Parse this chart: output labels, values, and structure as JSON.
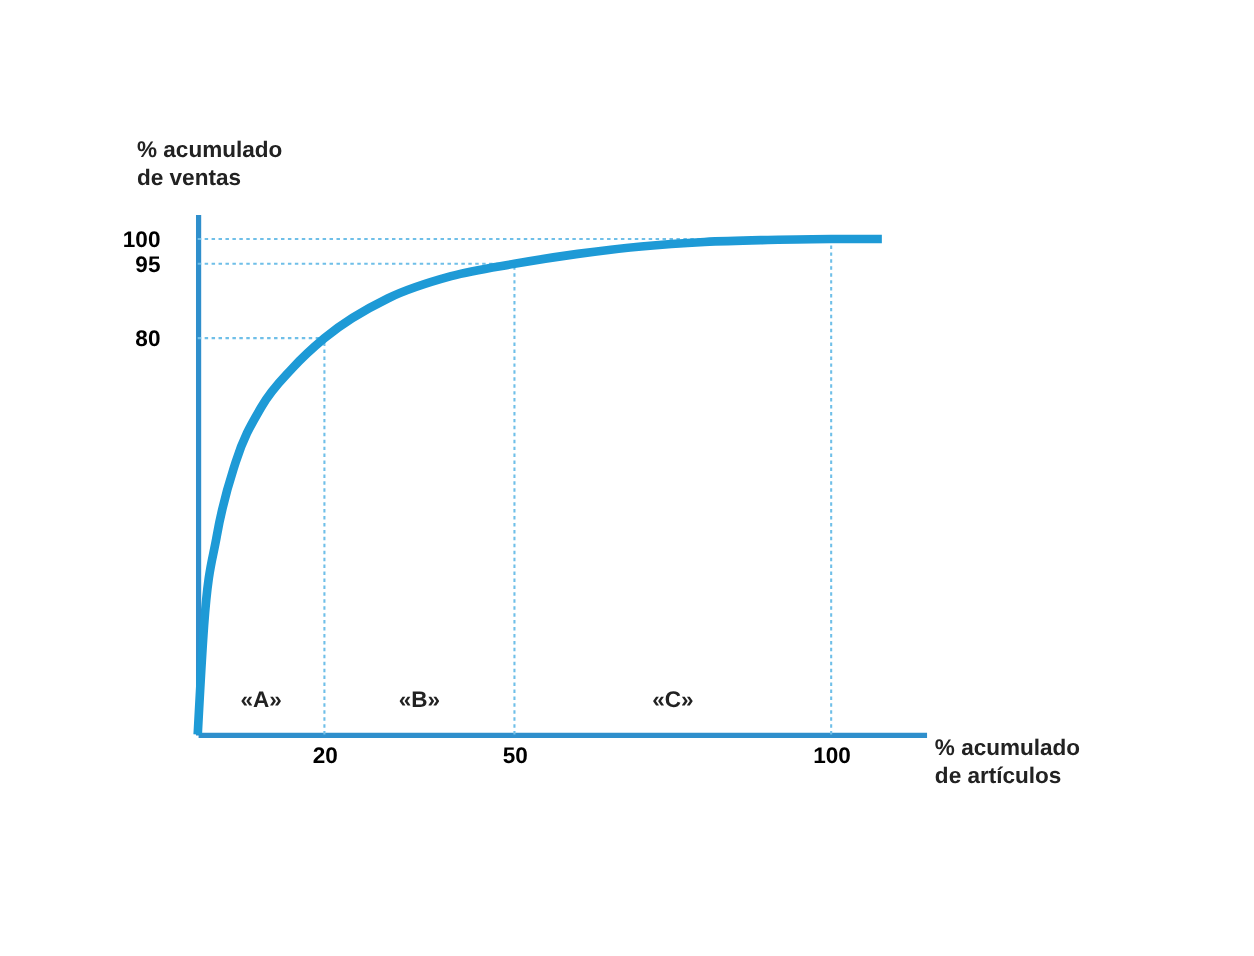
{
  "chart_data": {
    "type": "line",
    "xlabel": "% acumulado\nde artículos",
    "ylabel": "% acumulado\nde ventas",
    "x": [
      0,
      1,
      3,
      6,
      10,
      15,
      20,
      30,
      40,
      50,
      60,
      70,
      80,
      90,
      100,
      108
    ],
    "series": [
      {
        "color": "#1e9ad6",
        "values": [
          0,
          22,
          40,
          55,
          66,
          74,
          80,
          88,
          92.5,
          95,
          97,
          98.5,
          99.4,
          99.8,
          100,
          100
        ]
      }
    ],
    "xlim": [
      0,
      115
    ],
    "ylim": [
      0,
      105
    ],
    "xticks": [
      20,
      50,
      100
    ],
    "yticks": [
      80,
      95,
      100
    ],
    "grid": false,
    "marker": "none",
    "line_style": "solid",
    "ref_lines": [
      {
        "axis": "y",
        "value": 80,
        "color": "#6fbfe8",
        "line_style": "dotted"
      },
      {
        "axis": "y",
        "value": 95,
        "color": "#6fbfe8",
        "line_style": "dotted"
      },
      {
        "axis": "y",
        "value": 100,
        "color": "#6fbfe8",
        "line_style": "dotted"
      },
      {
        "axis": "x",
        "value": 20,
        "color": "#6fbfe8",
        "line_style": "dotted"
      },
      {
        "axis": "x",
        "value": 50,
        "color": "#6fbfe8",
        "line_style": "dotted"
      },
      {
        "axis": "x",
        "value": 100,
        "color": "#6fbfe8",
        "line_style": "dotted"
      }
    ],
    "annotations": [
      "«A»",
      "«B»",
      "«C»"
    ]
  }
}
